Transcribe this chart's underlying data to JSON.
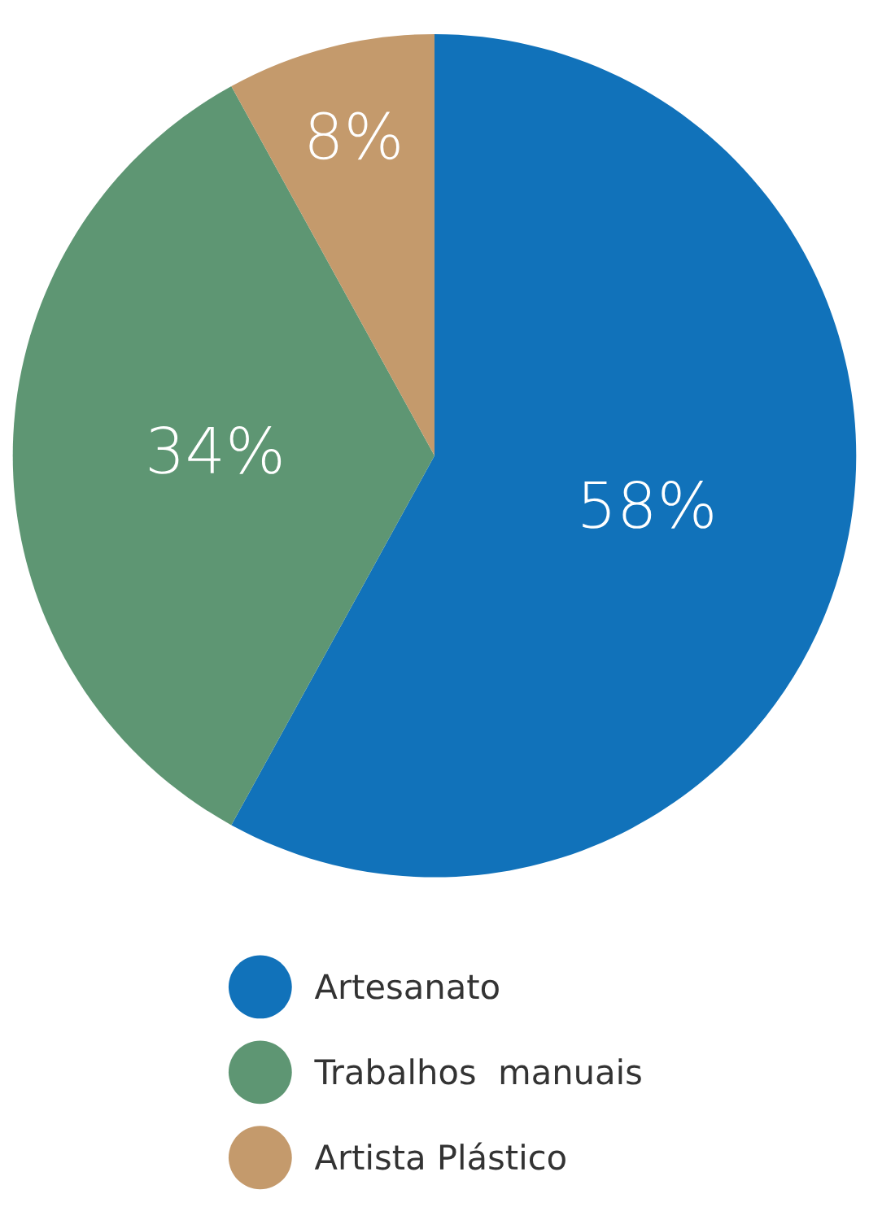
{
  "chart_data": {
    "type": "pie",
    "categories": [
      "Artesanato",
      "Trabalhos  manuais",
      "Artista Plástico"
    ],
    "values": [
      58,
      34,
      8
    ],
    "colors": [
      "#1172ba",
      "#5e9673",
      "#c49a6c"
    ],
    "value_labels": [
      "58%",
      "34%",
      "8%"
    ],
    "legend": "bottom"
  }
}
